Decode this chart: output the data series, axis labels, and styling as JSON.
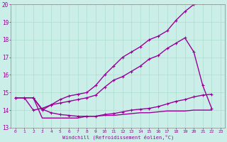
{
  "xlabel": "Windchill (Refroidissement éolien,°C)",
  "background_color": "#cceee8",
  "grid_color": "#aaddcc",
  "line_color": "#990099",
  "xlim": [
    -0.5,
    23.5
  ],
  "ylim": [
    13,
    20
  ],
  "xticks": [
    0,
    1,
    2,
    3,
    4,
    5,
    6,
    7,
    8,
    9,
    10,
    11,
    12,
    13,
    14,
    15,
    16,
    17,
    18,
    19,
    20,
    21,
    22,
    23
  ],
  "yticks": [
    13,
    14,
    15,
    16,
    17,
    18,
    19,
    20
  ],
  "series": [
    {
      "x": [
        0,
        1,
        2,
        3,
        4,
        5,
        6,
        7,
        8,
        9,
        10,
        11,
        12,
        13,
        14,
        15,
        16,
        17,
        18,
        19,
        20,
        21,
        22
      ],
      "y": [
        14.7,
        14.7,
        14.7,
        13.55,
        13.55,
        13.55,
        13.55,
        13.55,
        13.65,
        13.65,
        13.7,
        13.7,
        13.75,
        13.8,
        13.85,
        13.85,
        13.9,
        13.95,
        13.95,
        13.95,
        14.0,
        14.0,
        14.0
      ],
      "marker": false,
      "lw": 1.0
    },
    {
      "x": [
        0,
        1,
        2,
        3,
        4,
        5,
        6,
        7,
        8,
        9,
        10,
        11,
        12,
        13,
        14,
        15,
        16,
        17,
        18,
        19,
        20,
        21,
        22
      ],
      "y": [
        14.7,
        14.7,
        14.0,
        14.1,
        14.3,
        14.4,
        14.5,
        14.6,
        14.7,
        14.85,
        15.3,
        15.7,
        15.9,
        16.2,
        16.5,
        16.9,
        17.1,
        17.5,
        17.8,
        18.1,
        17.3,
        15.4,
        14.1
      ],
      "marker": true,
      "lw": 1.0
    },
    {
      "x": [
        0,
        1,
        2,
        3,
        4,
        5,
        6,
        7,
        8,
        9,
        10,
        11,
        12,
        13,
        14,
        15,
        16,
        17,
        18,
        19,
        20,
        21,
        22
      ],
      "y": [
        14.7,
        14.7,
        14.7,
        14.0,
        14.3,
        14.6,
        14.8,
        14.9,
        15.0,
        15.4,
        16.0,
        16.5,
        17.0,
        17.3,
        17.6,
        18.0,
        18.2,
        18.5,
        19.1,
        19.6,
        20.0,
        20.1,
        20.2
      ],
      "marker": true,
      "lw": 1.0
    },
    {
      "x": [
        2,
        3,
        4,
        5,
        6,
        7,
        8,
        9,
        10,
        11,
        12,
        13,
        14,
        15,
        16,
        17,
        18,
        19,
        20,
        21,
        22
      ],
      "y": [
        14.7,
        14.05,
        13.85,
        13.75,
        13.7,
        13.65,
        13.65,
        13.65,
        13.75,
        13.8,
        13.9,
        14.0,
        14.05,
        14.1,
        14.2,
        14.35,
        14.5,
        14.6,
        14.75,
        14.85,
        14.9
      ],
      "marker": true,
      "lw": 1.0
    }
  ]
}
